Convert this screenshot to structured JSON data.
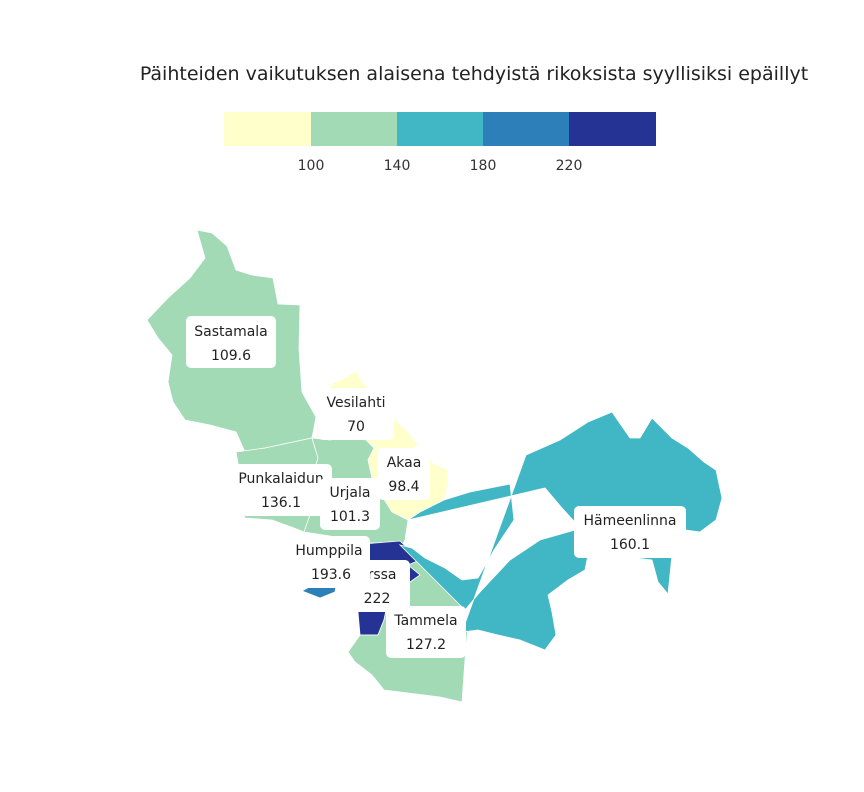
{
  "title": "Päihteiden vaikutuksen alaisena tehdyistä rikoksista syyllisiksi epäillyt",
  "legend": {
    "ticks": [
      "100",
      "140",
      "180",
      "220"
    ],
    "colors": [
      "#ffffcc",
      "#a1dab4",
      "#41b6c4",
      "#2c7fb8",
      "#253494"
    ]
  },
  "chart_data": {
    "type": "choropleth",
    "breaks": [
      100,
      140,
      180,
      220
    ],
    "regions": [
      {
        "name": "Sastamala",
        "value": 109.6,
        "value_text": "109.6"
      },
      {
        "name": "Vesilahti",
        "value": 70,
        "value_text": "70"
      },
      {
        "name": "Akaa",
        "value": 98.4,
        "value_text": "98.4"
      },
      {
        "name": "Punkalaidun",
        "value": 136.1,
        "value_text": "136.1"
      },
      {
        "name": "Urjala",
        "value": 101.3,
        "value_text": "101.3"
      },
      {
        "name": "Humppila",
        "value": 193.6,
        "value_text": "193.6"
      },
      {
        "name": "Forssa",
        "value": 222,
        "value_text": "222"
      },
      {
        "name": "Tammela",
        "value": 127.2,
        "value_text": "127.2"
      },
      {
        "name": "Hämeenlinna",
        "value": 160.1,
        "value_text": "160.1"
      }
    ]
  }
}
